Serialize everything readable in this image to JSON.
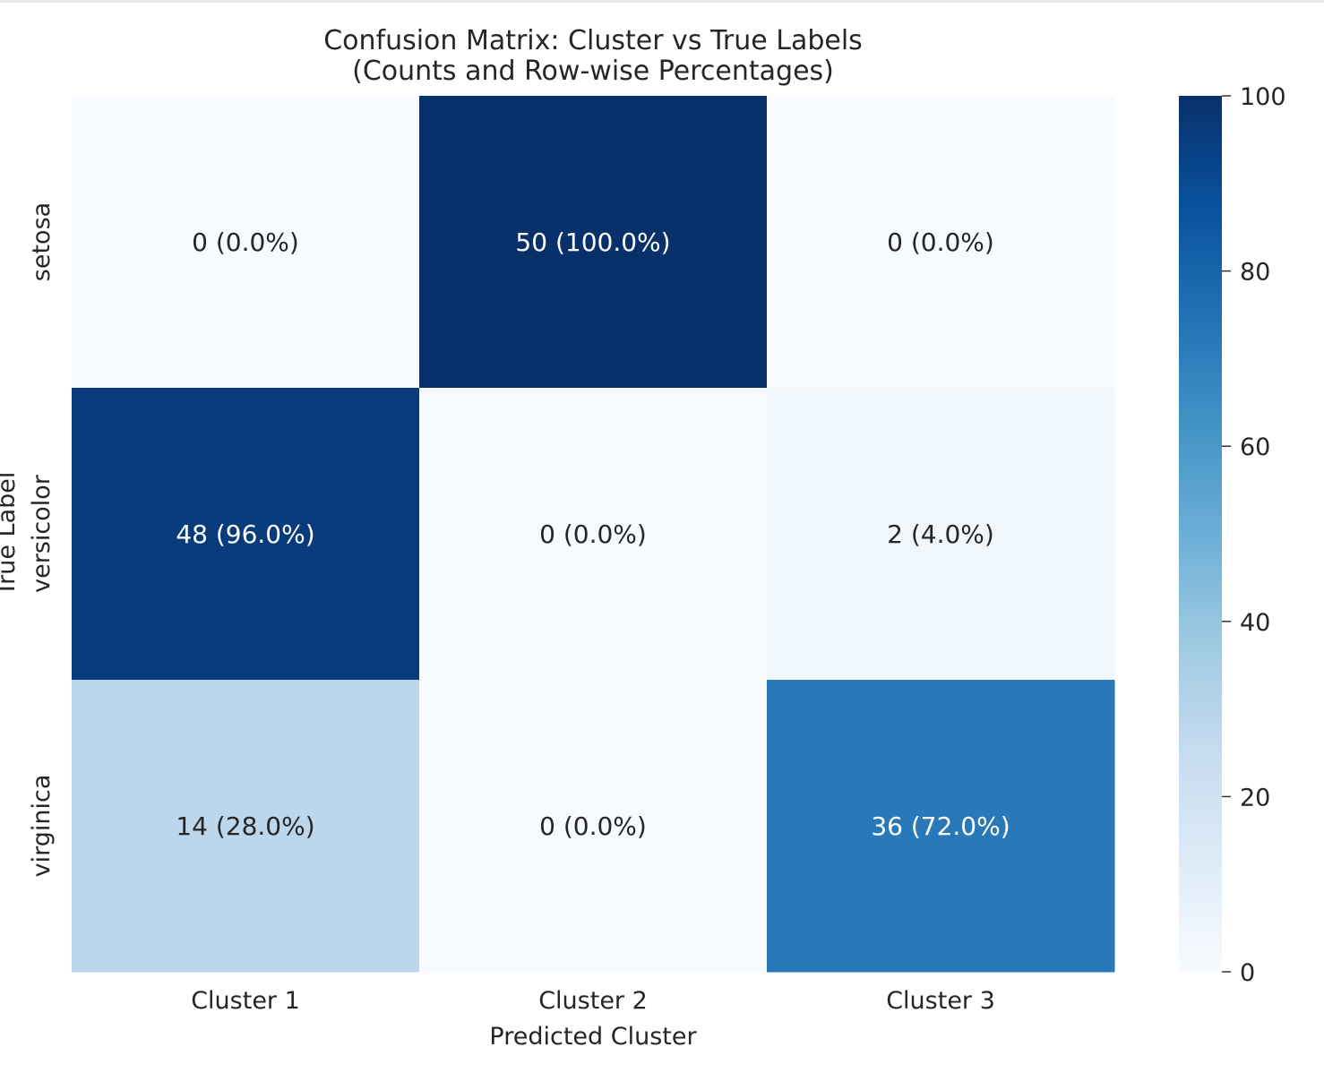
{
  "chart_data": {
    "type": "heatmap",
    "title": "Confusion Matrix: Cluster vs True Labels",
    "subtitle": "(Counts and Row-wise Percentages)",
    "xlabel": "Predicted Cluster",
    "ylabel": "True Label",
    "x_categories": [
      "Cluster 1",
      "Cluster 2",
      "Cluster 3"
    ],
    "y_categories": [
      "setosa",
      "versicolor",
      "virginica"
    ],
    "counts": [
      [
        0,
        50,
        0
      ],
      [
        48,
        0,
        2
      ],
      [
        14,
        0,
        36
      ]
    ],
    "percentages": [
      [
        0.0,
        100.0,
        0.0
      ],
      [
        96.0,
        0.0,
        4.0
      ],
      [
        28.0,
        0.0,
        72.0
      ]
    ],
    "cell_labels": [
      [
        "0 (0.0%)",
        "50 (100.0%)",
        "0 (0.0%)"
      ],
      [
        "48 (96.0%)",
        "0 (0.0%)",
        "2 (4.0%)"
      ],
      [
        "14 (28.0%)",
        "0 (0.0%)",
        "36 (72.0%)"
      ]
    ],
    "colorbar": {
      "range": [
        0,
        100
      ],
      "ticks": [
        0,
        20,
        40,
        60,
        80,
        100
      ],
      "colormap": "Blues"
    }
  }
}
